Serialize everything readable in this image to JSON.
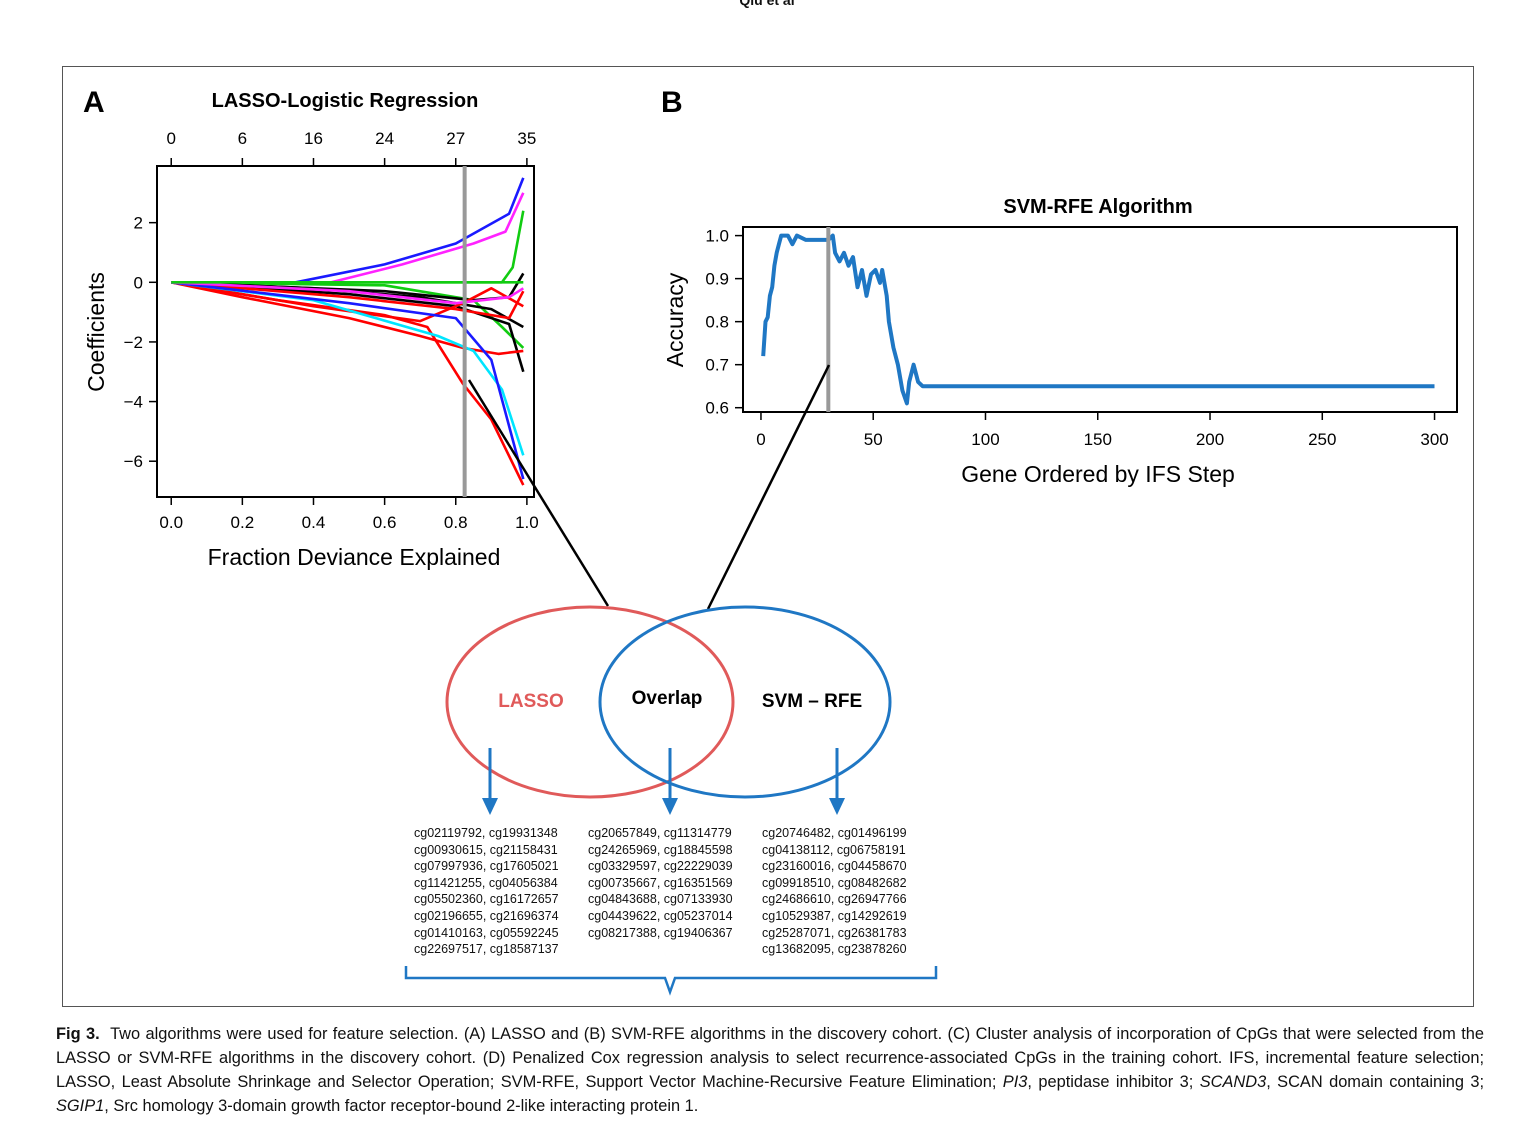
{
  "header": {
    "running_head": "Qiu et al"
  },
  "panel_a": {
    "letter": "A",
    "chart_data": {
      "type": "line",
      "title": "LASSO-Logistic Regression",
      "xlabel": "Fraction Deviance Explained",
      "ylabel": "Coefficients",
      "xlim": [
        -0.04,
        1.02
      ],
      "ylim": [
        -7.2,
        3.9
      ],
      "x_ticks": [
        "0.0",
        "0.2",
        "0.4",
        "0.6",
        "0.8",
        "1.0"
      ],
      "x_tick_values": [
        0,
        0.2,
        0.4,
        0.6,
        0.8,
        1.0
      ],
      "y_ticks": [
        "2",
        "0",
        "−2",
        "−4",
        "−6"
      ],
      "y_tick_values": [
        2,
        0,
        -2,
        -4,
        -6
      ],
      "top_ticks": [
        "0",
        "6",
        "16",
        "24",
        "27",
        "35"
      ],
      "top_tick_values": [
        0,
        0.2,
        0.4,
        0.6,
        0.8,
        1.0
      ],
      "cutoff_x": 0.825,
      "series": [
        {
          "color": "#1a1aff",
          "points": [
            [
              0,
              0
            ],
            [
              0.35,
              0
            ],
            [
              0.6,
              0.6
            ],
            [
              0.8,
              1.3
            ],
            [
              0.95,
              2.3
            ],
            [
              0.99,
              3.5
            ]
          ]
        },
        {
          "color": "#ff22ff",
          "points": [
            [
              0,
              0
            ],
            [
              0.45,
              0
            ],
            [
              0.65,
              0.6
            ],
            [
              0.85,
              1.3
            ],
            [
              0.94,
              1.7
            ],
            [
              0.99,
              3.0
            ]
          ]
        },
        {
          "color": "#11cc11",
          "points": [
            [
              0,
              0
            ],
            [
              0.93,
              0
            ],
            [
              0.96,
              0.5
            ],
            [
              0.99,
              2.4
            ]
          ]
        },
        {
          "color": "#11cc11",
          "points": [
            [
              0,
              0
            ],
            [
              0.6,
              -0.1
            ],
            [
              0.85,
              -0.6
            ],
            [
              0.93,
              -1.5
            ],
            [
              0.99,
              -2.2
            ]
          ]
        },
        {
          "color": "#000000",
          "points": [
            [
              0,
              0
            ],
            [
              0.5,
              -0.4
            ],
            [
              0.8,
              -0.8
            ],
            [
              0.95,
              -1.4
            ],
            [
              0.99,
              -3.0
            ]
          ]
        },
        {
          "color": "#000000",
          "points": [
            [
              0,
              0
            ],
            [
              0.6,
              -0.3
            ],
            [
              0.85,
              -0.6
            ],
            [
              0.95,
              -0.5
            ],
            [
              0.99,
              0.3
            ]
          ]
        },
        {
          "color": "#000000",
          "points": [
            [
              0,
              0
            ],
            [
              0.4,
              -0.2
            ],
            [
              0.7,
              -0.5
            ],
            [
              0.9,
              -0.9
            ],
            [
              0.99,
              -1.5
            ]
          ]
        },
        {
          "color": "#ff0000",
          "points": [
            [
              0,
              0
            ],
            [
              0.2,
              -0.5
            ],
            [
              0.5,
              -1.2
            ],
            [
              0.7,
              -1.8
            ],
            [
              0.82,
              -2.2
            ],
            [
              0.92,
              -2.4
            ],
            [
              0.99,
              -2.3
            ]
          ]
        },
        {
          "color": "#ff0000",
          "points": [
            [
              0,
              0
            ],
            [
              0.3,
              -0.6
            ],
            [
              0.6,
              -1.1
            ],
            [
              0.72,
              -1.5
            ],
            [
              0.82,
              -3.4
            ],
            [
              0.9,
              -4.6
            ],
            [
              0.99,
              -6.8
            ]
          ]
        },
        {
          "color": "#ff0000",
          "points": [
            [
              0,
              0
            ],
            [
              0.4,
              -0.8
            ],
            [
              0.7,
              -1.3
            ],
            [
              0.82,
              -0.7
            ],
            [
              0.9,
              -0.2
            ],
            [
              0.99,
              -0.8
            ]
          ]
        },
        {
          "color": "#ff0000",
          "points": [
            [
              0,
              0
            ],
            [
              0.5,
              -0.5
            ],
            [
              0.8,
              -0.9
            ],
            [
              0.95,
              -1.2
            ],
            [
              0.99,
              -0.3
            ]
          ]
        },
        {
          "color": "#00e5ff",
          "points": [
            [
              0,
              0
            ],
            [
              0.4,
              -0.6
            ],
            [
              0.75,
              -1.8
            ],
            [
              0.85,
              -2.3
            ],
            [
              0.93,
              -3.6
            ],
            [
              0.99,
              -5.8
            ]
          ]
        },
        {
          "color": "#1a1aff",
          "points": [
            [
              0,
              0
            ],
            [
              0.5,
              -0.7
            ],
            [
              0.8,
              -1.2
            ],
            [
              0.9,
              -2.6
            ],
            [
              0.99,
              -6.6
            ]
          ]
        },
        {
          "color": "#ff22ff",
          "points": [
            [
              0,
              0
            ],
            [
              0.5,
              -0.3
            ],
            [
              0.8,
              -0.7
            ],
            [
              0.95,
              -0.5
            ],
            [
              0.99,
              -0.2
            ]
          ]
        },
        {
          "color": "#11cc11",
          "points": [
            [
              0,
              0
            ],
            [
              0.99,
              0
            ]
          ]
        }
      ]
    }
  },
  "panel_b": {
    "letter": "B",
    "chart_data": {
      "type": "line",
      "title": "SVM-RFE Algorithm",
      "xlabel": "Gene Ordered by IFS Step",
      "ylabel": "Accuracy",
      "xlim": [
        -8,
        310
      ],
      "ylim": [
        0.59,
        1.02
      ],
      "x_ticks": [
        "0",
        "50",
        "100",
        "150",
        "200",
        "250",
        "300"
      ],
      "x_tick_values": [
        0,
        50,
        100,
        150,
        200,
        250,
        300
      ],
      "y_ticks": [
        "1.0",
        "0.9",
        "0.8",
        "0.7",
        "0.6"
      ],
      "y_tick_values": [
        1.0,
        0.9,
        0.8,
        0.7,
        0.6
      ],
      "cutoff_x": 30,
      "color": "#1f77c4",
      "points": [
        [
          1,
          0.72
        ],
        [
          2,
          0.8
        ],
        [
          3,
          0.81
        ],
        [
          4,
          0.86
        ],
        [
          5,
          0.88
        ],
        [
          6,
          0.93
        ],
        [
          7,
          0.96
        ],
        [
          8,
          0.98
        ],
        [
          9,
          1.0
        ],
        [
          12,
          1.0
        ],
        [
          14,
          0.98
        ],
        [
          16,
          1.0
        ],
        [
          20,
          0.99
        ],
        [
          25,
          0.99
        ],
        [
          30,
          0.99
        ],
        [
          32,
          1.0
        ],
        [
          33,
          0.96
        ],
        [
          35,
          0.94
        ],
        [
          37,
          0.96
        ],
        [
          39,
          0.93
        ],
        [
          41,
          0.95
        ],
        [
          43,
          0.88
        ],
        [
          45,
          0.92
        ],
        [
          47,
          0.86
        ],
        [
          49,
          0.91
        ],
        [
          51,
          0.92
        ],
        [
          53,
          0.89
        ],
        [
          54,
          0.92
        ],
        [
          56,
          0.86
        ],
        [
          57,
          0.8
        ],
        [
          59,
          0.74
        ],
        [
          61,
          0.7
        ],
        [
          63,
          0.64
        ],
        [
          65,
          0.61
        ],
        [
          66,
          0.66
        ],
        [
          68,
          0.7
        ],
        [
          70,
          0.66
        ],
        [
          72,
          0.65
        ],
        [
          300,
          0.65
        ]
      ]
    }
  },
  "venn": {
    "left_label": "LASSO",
    "center_label": "Overlap",
    "right_label": "SVM – RFE",
    "left_color": "#e05a5a",
    "right_color": "#1f77c4",
    "lasso_cpgs": "cg02119792, cg19931348\ncg00930615, cg21158431\ncg07997936, cg17605021\ncg11421255, cg04056384\ncg05502360, cg16172657\ncg02196655, cg21696374\ncg01410163, cg05592245\ncg22697517, cg18587137",
    "overlap_cpgs": "cg20657849, cg11314779\ncg24265969, cg18845598\ncg03329597, cg22229039\ncg00735667, cg16351569\ncg04843688, cg07133930\ncg04439622, cg05237014\ncg08217388, cg19406367",
    "svm_cpgs": "cg20746482, cg01496199\ncg04138112, cg06758191\ncg23160016, cg04458670\ncg09918510, cg08482682\ncg24686610, cg26947766\ncg10529387, cg14292619\ncg25287071, cg26381783\ncg13682095, cg23878260"
  },
  "caption": {
    "label": "Fig 3.",
    "text1": "Two algorithms were used for feature selection. (A) LASSO and (B) SVM-RFE algorithms in the discovery cohort. (C) Cluster analysis of incorporation of CpGs that were selected from the LASSO or SVM-RFE algorithms in the discovery cohort. (D) Penalized Cox regression analysis to select recurrence-associated CpGs in the training cohort. IFS, incremental feature selection; LASSO, Least Absolute Shrinkage and Selector Operation; SVM-RFE, Support Vector Machine-Recursive Feature Elimination;",
    "gene1": "PI3",
    "text2": ", peptidase inhibitor 3;",
    "gene2": "SCAND3",
    "text3": ", SCAN domain containing 3;",
    "gene3": "SGIP1",
    "text4": ", Src homology 3-domain growth factor receptor-bound 2-like interacting protein 1."
  }
}
